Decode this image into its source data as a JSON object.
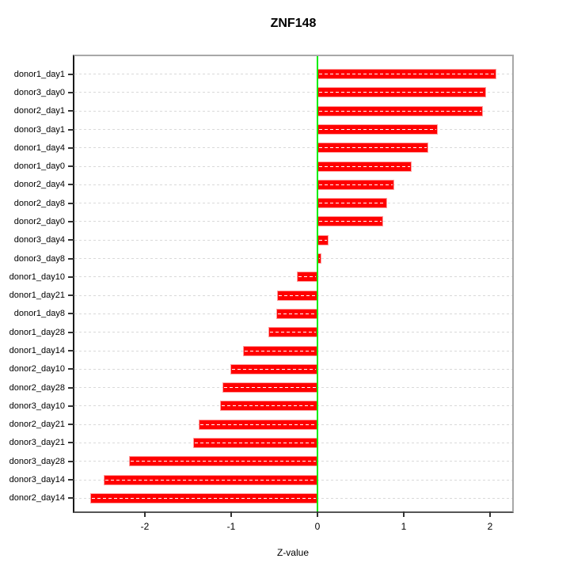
{
  "chart_data": {
    "type": "bar",
    "orientation": "horizontal",
    "title": "ZNF148",
    "xlabel": "Z-value",
    "ylabel": "",
    "legend": "none",
    "grid": "horizontal dashed line per category",
    "categories": [
      "donor1_day1",
      "donor3_day0",
      "donor2_day1",
      "donor3_day1",
      "donor1_day4",
      "donor1_day0",
      "donor2_day4",
      "donor2_day8",
      "donor2_day0",
      "donor3_day4",
      "donor3_day8",
      "donor1_day10",
      "donor1_day21",
      "donor1_day8",
      "donor1_day28",
      "donor1_day14",
      "donor2_day10",
      "donor2_day28",
      "donor3_day10",
      "donor2_day21",
      "donor3_day21",
      "donor3_day28",
      "donor3_day14",
      "donor2_day14"
    ],
    "values": [
      2.08,
      1.96,
      1.92,
      1.4,
      1.29,
      1.09,
      0.89,
      0.81,
      0.76,
      0.13,
      0.05,
      -0.24,
      -0.47,
      -0.48,
      -0.57,
      -0.86,
      -1.01,
      -1.1,
      -1.13,
      -1.38,
      -1.44,
      -2.19,
      -2.48,
      -2.64
    ],
    "xlim": [
      -2.82,
      2.26
    ],
    "xticks": [
      "-2",
      "-1",
      "0",
      "1",
      "2"
    ],
    "xtick_values": [
      -2,
      -1,
      0,
      1,
      2
    ],
    "colors": {
      "bar_fill": "#FF0000",
      "bar_border": "#FF9E9E",
      "bar_inner_dash": "#FFFFFF",
      "zero_line": "#00EE00",
      "grid_line": "#D9D9D9",
      "tick": "#333333",
      "text": "#000000",
      "background": "#FFFFFF"
    }
  }
}
